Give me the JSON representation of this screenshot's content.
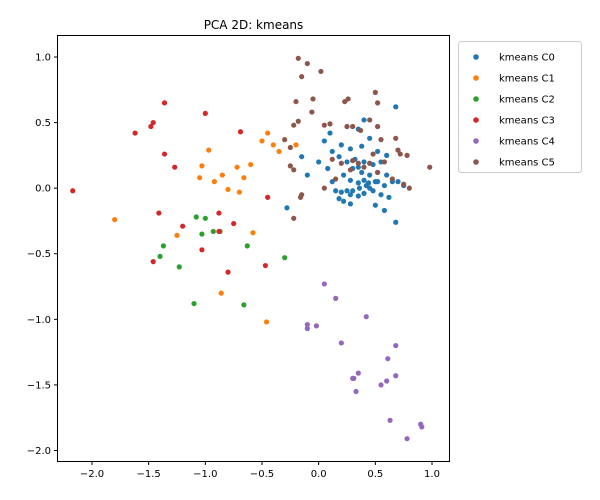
{
  "chart_data": {
    "type": "scatter",
    "title": "PCA 2D: kmeans",
    "xlabel": "",
    "ylabel": "",
    "xlim": [
      -2.3,
      1.15
    ],
    "ylim": [
      -2.08,
      1.16
    ],
    "xticks": [
      -2.0,
      -1.5,
      -1.0,
      -0.5,
      0.0,
      0.5,
      1.0
    ],
    "xtick_labels": [
      "−2.0",
      "−1.5",
      "−1.0",
      "−0.5",
      "0.0",
      "0.5",
      "1.0"
    ],
    "yticks": [
      1.0,
      0.5,
      0.0,
      -0.5,
      -1.0,
      -1.5,
      -2.0
    ],
    "ytick_labels": [
      "1.0",
      "0.5",
      "0.0",
      "−0.5",
      "−1.0",
      "−1.5",
      "−2.0"
    ],
    "grid": false,
    "legend_placement": "outside-top-right",
    "series": [
      {
        "name": "kmeans C0",
        "color": "#1f77b4",
        "points": [
          [
            0.4,
            0.52
          ],
          [
            0.35,
            0.45
          ],
          [
            0.68,
            0.62
          ],
          [
            0.1,
            0.42
          ],
          [
            0.2,
            0.33
          ],
          [
            0.28,
            0.3
          ],
          [
            0.38,
            0.32
          ],
          [
            0.45,
            0.38
          ],
          [
            0.52,
            0.28
          ],
          [
            0.6,
            0.25
          ],
          [
            0.05,
            0.36
          ],
          [
            0.12,
            0.28
          ],
          [
            0.18,
            0.24
          ],
          [
            0.25,
            0.2
          ],
          [
            0.32,
            0.22
          ],
          [
            0.4,
            0.2
          ],
          [
            0.48,
            0.18
          ],
          [
            0.55,
            0.2
          ],
          [
            0.3,
            0.15
          ],
          [
            0.38,
            0.12
          ],
          [
            0.45,
            0.1
          ],
          [
            0.52,
            0.12
          ],
          [
            0.6,
            0.1
          ],
          [
            0.22,
            0.1
          ],
          [
            0.28,
            0.06
          ],
          [
            0.35,
            0.04
          ],
          [
            0.42,
            0.02
          ],
          [
            0.5,
            0.05
          ],
          [
            0.58,
            0.02
          ],
          [
            0.65,
            0.05
          ],
          [
            0.7,
            0.05
          ],
          [
            0.75,
            0.02
          ],
          [
            0.4,
            0.06
          ],
          [
            0.44,
            0.04
          ],
          [
            0.36,
            0.0
          ],
          [
            0.3,
            -0.02
          ],
          [
            0.25,
            -0.02
          ],
          [
            0.2,
            -0.03
          ],
          [
            0.15,
            -0.02
          ],
          [
            0.28,
            -0.05
          ],
          [
            0.35,
            -0.06
          ],
          [
            0.4,
            -0.04
          ],
          [
            0.48,
            -0.02
          ],
          [
            0.55,
            -0.05
          ],
          [
            0.62,
            -0.07
          ],
          [
            0.18,
            -0.08
          ],
          [
            0.22,
            -0.1
          ],
          [
            0.5,
            -0.13
          ],
          [
            0.58,
            -0.17
          ],
          [
            0.68,
            -0.26
          ],
          [
            -0.28,
            -0.15
          ],
          [
            -0.15,
            0.24
          ],
          [
            -0.1,
            0.1
          ],
          [
            0.0,
            0.2
          ],
          [
            0.08,
            0.15
          ],
          [
            0.12,
            0.05
          ],
          [
            0.28,
            -0.12
          ],
          [
            0.45,
            0.0
          ],
          [
            0.52,
            0.05
          ],
          [
            0.35,
            0.16
          ]
        ]
      },
      {
        "name": "kmeans C1",
        "color": "#ff7f0e",
        "points": [
          [
            -1.8,
            -0.24
          ],
          [
            -1.25,
            -0.36
          ],
          [
            -1.05,
            0.08
          ],
          [
            -1.03,
            0.17
          ],
          [
            -0.97,
            0.29
          ],
          [
            -0.92,
            0.05
          ],
          [
            -0.85,
            0.1
          ],
          [
            -0.8,
            -0.01
          ],
          [
            -0.72,
            0.16
          ],
          [
            -0.7,
            -0.03
          ],
          [
            -0.66,
            0.08
          ],
          [
            -0.6,
            0.18
          ],
          [
            -0.58,
            -0.34
          ],
          [
            -0.5,
            0.36
          ],
          [
            -0.45,
            0.42
          ],
          [
            -0.4,
            0.33
          ],
          [
            -0.35,
            0.28
          ],
          [
            -0.86,
            -0.8
          ],
          [
            -0.46,
            -1.02
          ],
          [
            -0.2,
            0.33
          ]
        ]
      },
      {
        "name": "kmeans C2",
        "color": "#2ca02c",
        "points": [
          [
            -1.37,
            -0.44
          ],
          [
            -1.4,
            -0.52
          ],
          [
            -1.23,
            -0.6
          ],
          [
            -1.1,
            -0.88
          ],
          [
            -1.03,
            -0.35
          ],
          [
            -0.93,
            -0.33
          ],
          [
            -0.87,
            -0.33
          ],
          [
            -1.08,
            -0.22
          ],
          [
            -1.0,
            -0.23
          ],
          [
            -0.63,
            -0.44
          ],
          [
            -0.66,
            -0.89
          ],
          [
            -0.3,
            -0.53
          ]
        ]
      },
      {
        "name": "kmeans C3",
        "color": "#d62728",
        "points": [
          [
            -2.17,
            -0.02
          ],
          [
            -1.62,
            0.42
          ],
          [
            -1.48,
            0.47
          ],
          [
            -1.46,
            0.5
          ],
          [
            -1.36,
            0.65
          ],
          [
            -1.36,
            0.26
          ],
          [
            -1.27,
            0.16
          ],
          [
            -1.41,
            -0.19
          ],
          [
            -1.2,
            -0.29
          ],
          [
            -1.46,
            -0.56
          ],
          [
            -1.03,
            -0.47
          ],
          [
            -1.0,
            0.57
          ],
          [
            -0.88,
            -0.19
          ],
          [
            -0.88,
            -0.33
          ],
          [
            -0.8,
            -0.64
          ],
          [
            -0.75,
            -0.27
          ],
          [
            -0.69,
            0.43
          ],
          [
            -0.47,
            -0.59
          ],
          [
            -0.45,
            -0.07
          ]
        ]
      },
      {
        "name": "kmeans C4",
        "color": "#9467bd",
        "points": [
          [
            0.05,
            -0.73
          ],
          [
            0.15,
            -0.84
          ],
          [
            0.42,
            -0.98
          ],
          [
            -0.02,
            -1.05
          ],
          [
            -0.1,
            -1.04
          ],
          [
            -0.1,
            -1.07
          ],
          [
            0.2,
            -1.18
          ],
          [
            0.68,
            -1.2
          ],
          [
            0.61,
            -1.3
          ],
          [
            0.35,
            -1.41
          ],
          [
            0.3,
            -1.45
          ],
          [
            0.31,
            -1.45
          ],
          [
            0.68,
            -1.43
          ],
          [
            0.6,
            -1.47
          ],
          [
            0.55,
            -1.5
          ],
          [
            0.33,
            -1.55
          ],
          [
            0.63,
            -1.77
          ],
          [
            0.9,
            -1.8
          ],
          [
            0.91,
            -1.82
          ],
          [
            0.78,
            -1.91
          ]
        ]
      },
      {
        "name": "kmeans C5",
        "color": "#8c564b",
        "points": [
          [
            -0.18,
            0.99
          ],
          [
            -0.1,
            0.95
          ],
          [
            0.02,
            0.89
          ],
          [
            -0.15,
            0.85
          ],
          [
            -0.05,
            0.68
          ],
          [
            -0.2,
            0.66
          ],
          [
            0.23,
            0.66
          ],
          [
            0.26,
            0.68
          ],
          [
            0.5,
            0.73
          ],
          [
            0.52,
            0.65
          ],
          [
            -0.06,
            0.58
          ],
          [
            0.05,
            0.48
          ],
          [
            0.1,
            0.49
          ],
          [
            0.25,
            0.47
          ],
          [
            0.3,
            0.47
          ],
          [
            0.37,
            0.44
          ],
          [
            0.45,
            0.52
          ],
          [
            0.52,
            0.47
          ],
          [
            0.55,
            0.37
          ],
          [
            0.48,
            0.26
          ],
          [
            -0.22,
            0.48
          ],
          [
            -0.18,
            0.51
          ],
          [
            -0.3,
            0.37
          ],
          [
            -0.25,
            0.31
          ],
          [
            0.58,
            0.2
          ],
          [
            0.7,
            0.29
          ],
          [
            0.72,
            0.26
          ],
          [
            0.78,
            0.25
          ],
          [
            0.68,
            0.38
          ],
          [
            0.52,
            0.12
          ],
          [
            0.65,
            0.07
          ],
          [
            0.75,
            0.03
          ],
          [
            0.8,
            0.0
          ],
          [
            0.98,
            0.16
          ],
          [
            0.45,
            0.19
          ],
          [
            0.4,
            0.16
          ],
          [
            0.35,
            0.19
          ],
          [
            0.3,
            0.21
          ],
          [
            0.2,
            0.19
          ],
          [
            0.15,
            0.07
          ],
          [
            0.05,
            0.0
          ],
          [
            -0.15,
            -0.05
          ],
          [
            -0.16,
            -0.07
          ],
          [
            -0.25,
            0.17
          ],
          [
            -0.22,
            0.14
          ],
          [
            -0.22,
            -0.23
          ],
          [
            0.12,
            0.22
          ],
          [
            0.28,
            0.14
          ]
        ]
      }
    ]
  }
}
